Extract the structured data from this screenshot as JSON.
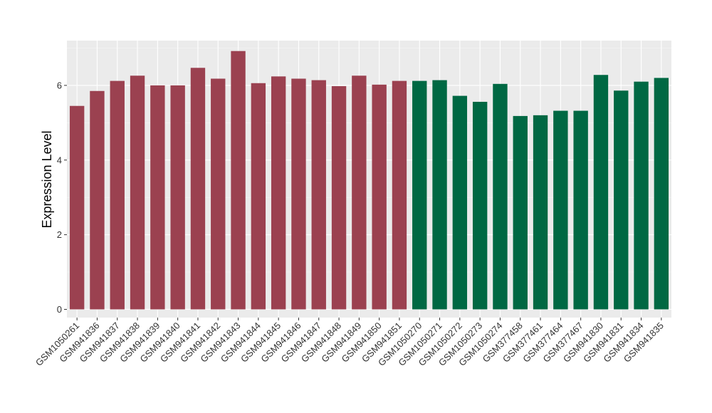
{
  "chart_data": {
    "type": "bar",
    "title": "",
    "xlabel": "",
    "ylabel": "Expression Level",
    "ylim": [
      -0.22,
      7.2
    ],
    "yticks": [
      0,
      2,
      4,
      6
    ],
    "grid": true,
    "legend": "none",
    "categories": [
      "GSM1050261",
      "GSM941836",
      "GSM941837",
      "GSM941838",
      "GSM941839",
      "GSM941840",
      "GSM941841",
      "GSM941842",
      "GSM941843",
      "GSM941844",
      "GSM941845",
      "GSM941846",
      "GSM941847",
      "GSM941848",
      "GSM941849",
      "GSM941850",
      "GSM941851",
      "GSM1050270",
      "GSM1050271",
      "GSM1050272",
      "GSM1050273",
      "GSM1050274",
      "GSM377458",
      "GSM377461",
      "GSM377464",
      "GSM377467",
      "GSM941830",
      "GSM941831",
      "GSM941834",
      "GSM941835"
    ],
    "values": [
      5.45,
      5.85,
      6.12,
      6.26,
      6.0,
      6.0,
      6.47,
      6.18,
      6.92,
      6.06,
      6.24,
      6.18,
      6.14,
      5.98,
      6.26,
      6.02,
      6.12,
      6.12,
      6.14,
      5.72,
      5.56,
      6.04,
      5.18,
      5.2,
      5.32,
      5.32,
      6.28,
      5.86,
      6.1,
      6.2
    ],
    "groups": [
      "a",
      "a",
      "a",
      "a",
      "a",
      "a",
      "a",
      "a",
      "a",
      "a",
      "a",
      "a",
      "a",
      "a",
      "a",
      "a",
      "a",
      "b",
      "b",
      "b",
      "b",
      "b",
      "b",
      "b",
      "b",
      "b",
      "b",
      "b",
      "b",
      "b"
    ],
    "colors": {
      "a": "#9b4150",
      "b": "#006843",
      "panel": "#ebebeb",
      "grid_major": "#ffffff",
      "grid_minor": "#f5f5f5",
      "tick_text": "#333333"
    }
  }
}
